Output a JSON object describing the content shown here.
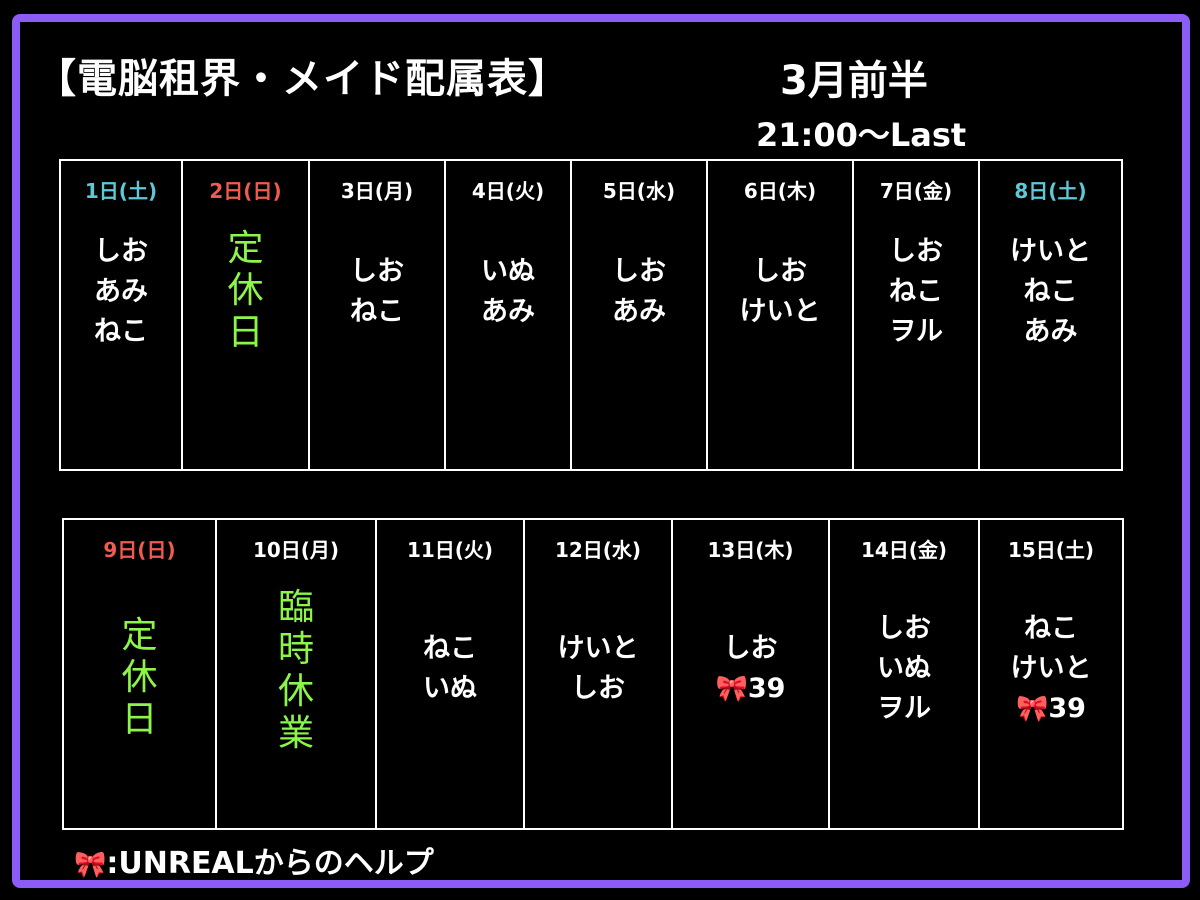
{
  "header": {
    "title": "【電脳租界・メイド配属表】",
    "period": "3月前半",
    "hours": "21:00〜Last"
  },
  "colors": {
    "frame": "#8b5cf6",
    "saturday": "#5ec8d6",
    "sunday": "#f05a4f",
    "closed": "#8cf54a",
    "ribbon": "#ff8fb8"
  },
  "week1": {
    "days": [
      {
        "label": "1日(土)",
        "staff": [
          "しお",
          "あみ",
          "ねこ"
        ]
      },
      {
        "label": "2日(日)",
        "closed": "定休日"
      },
      {
        "label": "3日(月)",
        "staff": [
          "しお",
          "ねこ"
        ]
      },
      {
        "label": "4日(火)",
        "staff": [
          "いぬ",
          "あみ"
        ]
      },
      {
        "label": "5日(水)",
        "staff": [
          "しお",
          "あみ"
        ]
      },
      {
        "label": "6日(木)",
        "staff": [
          "しお",
          "けいと"
        ]
      },
      {
        "label": "7日(金)",
        "staff": [
          "しお",
          "ねこ",
          "ヲル"
        ]
      },
      {
        "label": "8日(土)",
        "staff": [
          "けいと",
          "ねこ",
          "あみ"
        ]
      }
    ]
  },
  "week2": {
    "days": [
      {
        "label": "9日(日)",
        "closed": "定休日"
      },
      {
        "label": "10日(月)",
        "closed": "臨時休業"
      },
      {
        "label": "11日(火)",
        "staff": [
          "ねこ",
          "いぬ"
        ]
      },
      {
        "label": "12日(水)",
        "staff": [
          "けいと",
          "しお"
        ]
      },
      {
        "label": "13日(木)",
        "staff": [
          "しお"
        ],
        "help": "39"
      },
      {
        "label": "14日(金)",
        "staff": [
          "しお",
          "いぬ",
          "ヲル"
        ]
      },
      {
        "label": "15日(土)",
        "staff": [
          "ねこ",
          "けいと"
        ],
        "help": "39"
      }
    ]
  },
  "legend": {
    "text": ":UNREALからのヘルプ",
    "icon": "ribbon-icon"
  }
}
